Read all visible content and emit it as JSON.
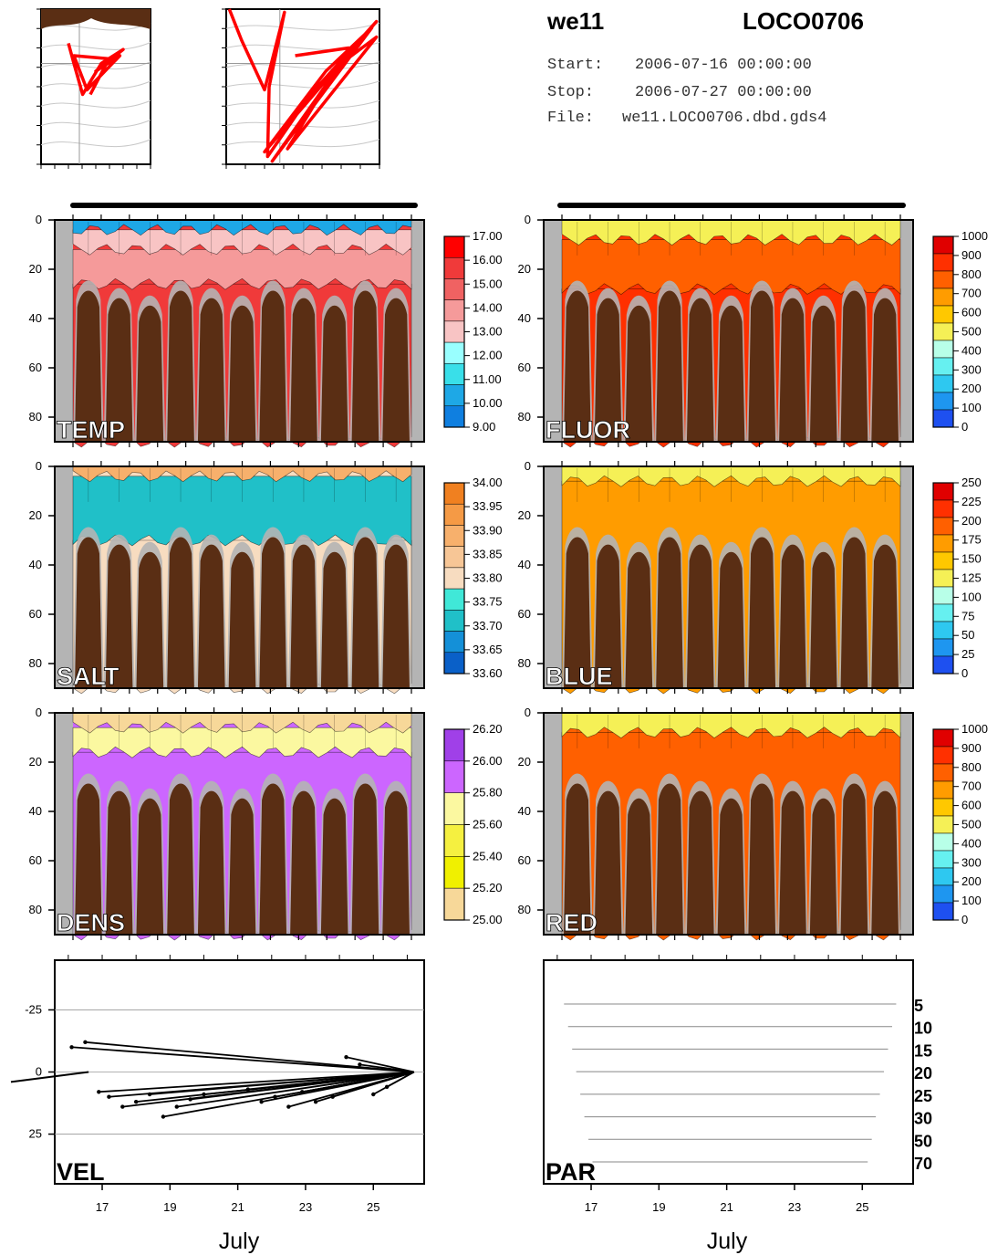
{
  "header": {
    "platform": "we11",
    "deployment": "LOCO0706",
    "start_label": "Start:",
    "start_value": "2006-07-16 00:00:00",
    "stop_label": "Stop:",
    "stop_value": "2006-07-27 00:00:00",
    "file_label": "File:",
    "file_value": "we11.LOCO0706.dbd.gds4"
  },
  "colors": {
    "seafloor": "#5a2e14",
    "gap": "#b4b4b4",
    "track": "#ff0000",
    "vectors": "#000000"
  },
  "chart_data": [
    {
      "type": "heatmap",
      "id": "temp",
      "label": "TEMP",
      "ylim": [
        90,
        0
      ],
      "yticks": [
        "0",
        "20",
        "40",
        "60",
        "80"
      ],
      "colorbar": [
        "17.00",
        "16.00",
        "15.00",
        "14.00",
        "13.00",
        "12.00",
        "11.00",
        "10.00",
        "9.00"
      ],
      "colors": [
        "#ff0000",
        "#f03a3a",
        "#f06262",
        "#f59a9a",
        "#f8c4c4",
        "#99ffff",
        "#39dfe9",
        "#1ea8e6",
        "#0f7fe0"
      ],
      "bands": [
        [
          0,
          4,
          7
        ],
        [
          4,
          12,
          4
        ],
        [
          12,
          26,
          3
        ],
        [
          26,
          90,
          1
        ]
      ]
    },
    {
      "type": "heatmap",
      "id": "fluor",
      "label": "FLUOR",
      "ylim": [
        90,
        0
      ],
      "yticks": [
        "0",
        "20",
        "40",
        "60",
        "80"
      ],
      "colorbar": [
        "1000",
        "900",
        "800",
        "700",
        "600",
        "500",
        "400",
        "300",
        "200",
        "100",
        "0"
      ],
      "colors": [
        "#e00000",
        "#ff3000",
        "#ff6000",
        "#ff9c00",
        "#ffc800",
        "#f5f056",
        "#b8ffe8",
        "#66f0f0",
        "#2ec8f0",
        "#1e96f0",
        "#1e50f0"
      ],
      "bands": [
        [
          0,
          8,
          5
        ],
        [
          8,
          28,
          2
        ],
        [
          28,
          90,
          1
        ]
      ]
    },
    {
      "type": "heatmap",
      "id": "salt",
      "label": "SALT",
      "ylim": [
        90,
        0
      ],
      "yticks": [
        "0",
        "20",
        "40",
        "60",
        "80"
      ],
      "colorbar": [
        "34.00",
        "33.95",
        "33.90",
        "33.85",
        "33.80",
        "33.75",
        "33.70",
        "33.65",
        "33.60"
      ],
      "colors": [
        "#f08020",
        "#f59a45",
        "#f7b06c",
        "#f7c696",
        "#f7dcc0",
        "#40e8d8",
        "#20c0c8",
        "#1490d8",
        "#0a60c8"
      ],
      "bands": [
        [
          0,
          4,
          2
        ],
        [
          4,
          30,
          6
        ],
        [
          30,
          90,
          4
        ]
      ]
    },
    {
      "type": "heatmap",
      "id": "blue",
      "label": "BLUE",
      "ylim": [
        90,
        0
      ],
      "yticks": [
        "0",
        "20",
        "40",
        "60",
        "80"
      ],
      "colorbar": [
        "250",
        "225",
        "200",
        "175",
        "150",
        "125",
        "100",
        "75",
        "50",
        "25",
        "0"
      ],
      "colors": [
        "#e00000",
        "#ff3000",
        "#ff6000",
        "#ff9c00",
        "#ffc800",
        "#f5f056",
        "#b8ffe8",
        "#66f0f0",
        "#2ec8f0",
        "#1e96f0",
        "#1e50f0"
      ],
      "bands": [
        [
          0,
          6,
          5
        ],
        [
          6,
          90,
          3
        ]
      ]
    },
    {
      "type": "heatmap",
      "id": "dens",
      "label": "DENS",
      "ylim": [
        90,
        0
      ],
      "yticks": [
        "0",
        "20",
        "40",
        "60",
        "80"
      ],
      "colorbar": [
        "26.20",
        "26.00",
        "25.80",
        "25.60",
        "25.40",
        "25.20",
        "25.00"
      ],
      "colors": [
        "#a040e8",
        "#cc66ff",
        "#fbf8a0",
        "#f5f040",
        "#f0f000",
        "#f7d899"
      ],
      "bands": [
        [
          0,
          6,
          5
        ],
        [
          6,
          16,
          2
        ],
        [
          16,
          90,
          1
        ]
      ]
    },
    {
      "type": "heatmap",
      "id": "red",
      "label": "RED",
      "ylim": [
        90,
        0
      ],
      "yticks": [
        "0",
        "20",
        "40",
        "60",
        "80"
      ],
      "colorbar": [
        "1000",
        "900",
        "800",
        "700",
        "600",
        "500",
        "400",
        "300",
        "200",
        "100",
        "0"
      ],
      "colors": [
        "#e00000",
        "#ff3000",
        "#ff6000",
        "#ff9c00",
        "#ffc800",
        "#f5f056",
        "#b8ffe8",
        "#66f0f0",
        "#2ec8f0",
        "#1e96f0",
        "#1e50f0"
      ],
      "bands": [
        [
          0,
          8,
          5
        ],
        [
          8,
          90,
          2
        ]
      ]
    },
    {
      "type": "scatter",
      "id": "vel",
      "label": "VEL",
      "ylim": [
        -45,
        45
      ],
      "yticks": [
        "-25",
        "0",
        "25"
      ],
      "xticks": [
        "17",
        "19",
        "21",
        "23",
        "25"
      ],
      "xlabel": "July",
      "vectors": [
        [
          16.1,
          -10,
          12
        ],
        [
          16.5,
          -12,
          10
        ],
        [
          16.9,
          8,
          9
        ],
        [
          17.2,
          10,
          7
        ],
        [
          17.6,
          14,
          7
        ],
        [
          18.0,
          12,
          8
        ],
        [
          18.4,
          9,
          6
        ],
        [
          18.8,
          18,
          5
        ],
        [
          19.2,
          14,
          9
        ],
        [
          19.6,
          11,
          7
        ],
        [
          20.0,
          9,
          5
        ],
        [
          21.3,
          7,
          6
        ],
        [
          21.7,
          12,
          8
        ],
        [
          22.1,
          10,
          9
        ],
        [
          22.5,
          14,
          7
        ],
        [
          22.9,
          8,
          6
        ],
        [
          23.3,
          12,
          7
        ],
        [
          23.8,
          10,
          8
        ],
        [
          24.2,
          -6,
          7
        ],
        [
          24.6,
          -3,
          5
        ],
        [
          25.0,
          9,
          4
        ],
        [
          25.4,
          6,
          3
        ]
      ]
    },
    {
      "type": "line",
      "id": "par",
      "label": "PAR",
      "xticks": [
        "17",
        "19",
        "21",
        "23",
        "25"
      ],
      "xlabel": "July",
      "legend": [
        "5",
        "10",
        "15",
        "20",
        "25",
        "30",
        "50",
        "70"
      ],
      "ylim": [
        0,
        8
      ]
    }
  ]
}
